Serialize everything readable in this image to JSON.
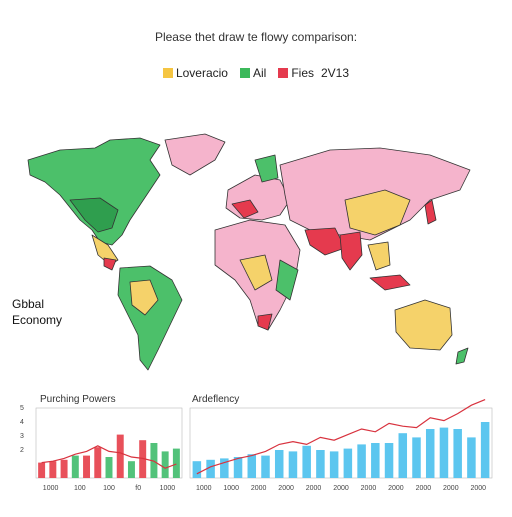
{
  "title": "Please thet draw te flowy comparison:",
  "legend": {
    "items": [
      {
        "label": "Loveracio",
        "color": "#f5c542"
      },
      {
        "label": "Ail",
        "color": "#3cb95b"
      },
      {
        "label": "Fies",
        "color": "#e53a4e"
      }
    ],
    "year": "2V13"
  },
  "map_label": {
    "line1": "Gbbal",
    "line2": "Economy"
  },
  "colors": {
    "yellow": "#f5d26a",
    "green": "#4cc06a",
    "pink": "#f5b4cc",
    "red": "#e53a4e",
    "sea": "#ffffff",
    "outline": "#333333",
    "bar_blue": "#5cc6ef",
    "bar_red": "#e8505a",
    "bar_green": "#52c27a",
    "line": "#d8323e"
  },
  "chart_data": [
    {
      "type": "bar",
      "title": "Purching Powers",
      "ylim": [
        0,
        5
      ],
      "y_ticks": [
        "5",
        "4",
        "3",
        "2"
      ],
      "x_ticks": [
        "1000",
        "100",
        "100",
        "f0",
        "1000"
      ],
      "values": [
        1.1,
        1.2,
        1.3,
        1.6,
        1.6,
        2.2,
        1.5,
        3.1,
        1.2,
        2.7,
        2.5,
        1.9,
        2.1
      ],
      "bar_colors": [
        "red",
        "red",
        "red",
        "green",
        "red",
        "red",
        "green",
        "red",
        "green",
        "red",
        "green",
        "green",
        "green"
      ],
      "line": [
        1.1,
        1.2,
        1.4,
        1.7,
        1.9,
        2.3,
        1.9,
        1.8,
        1.5,
        1.4,
        1.2,
        0.7,
        1.0
      ]
    },
    {
      "type": "bar",
      "title": "Ardeflency",
      "ylim": [
        0,
        5
      ],
      "x_ticks": [
        "1000",
        "1000",
        "2000",
        "2000",
        "2000",
        "2000",
        "2000",
        "2000",
        "2000",
        "2000",
        "2000"
      ],
      "values": [
        1.2,
        1.3,
        1.4,
        1.5,
        1.7,
        1.6,
        2.0,
        1.9,
        2.3,
        2.0,
        1.9,
        2.1,
        2.4,
        2.5,
        2.5,
        3.2,
        2.9,
        3.5,
        3.6,
        3.5,
        2.9,
        4.0
      ],
      "bar_colors": [
        "blue",
        "blue",
        "blue",
        "blue",
        "blue",
        "blue",
        "blue",
        "blue",
        "blue",
        "blue",
        "blue",
        "blue",
        "blue",
        "blue",
        "blue",
        "blue",
        "blue",
        "blue",
        "blue",
        "blue",
        "blue",
        "blue"
      ],
      "line": [
        0.3,
        0.8,
        1.1,
        1.4,
        1.6,
        1.9,
        2.4,
        2.6,
        2.4,
        2.9,
        2.7,
        3.1,
        3.5,
        3.3,
        3.9,
        3.7,
        3.6,
        4.3,
        4.1,
        4.6,
        5.2,
        5.6
      ]
    }
  ]
}
